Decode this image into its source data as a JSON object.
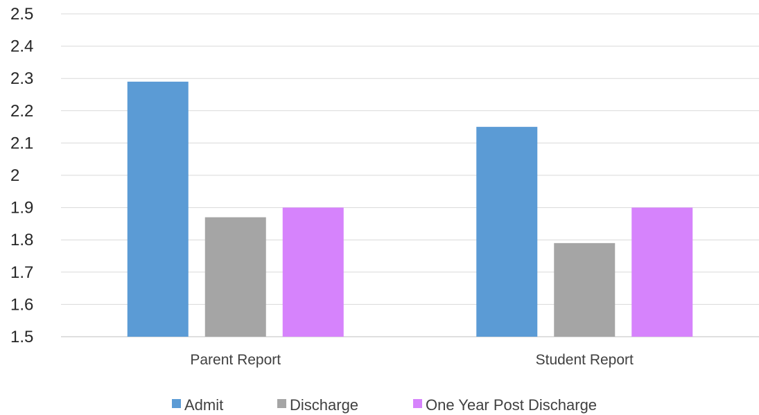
{
  "chart_data": {
    "type": "bar",
    "title": "",
    "xlabel": "",
    "ylabel": "",
    "categories": [
      "Parent Report",
      "Student Report"
    ],
    "series": [
      {
        "name": "Admit",
        "values": [
          2.29,
          2.15
        ],
        "color": "#5b9bd5"
      },
      {
        "name": "Discharge",
        "values": [
          1.87,
          1.79
        ],
        "color": "#a5a5a5"
      },
      {
        "name": "One Year Post Discharge",
        "values": [
          1.9,
          1.9
        ],
        "color": "#d683fc"
      }
    ],
    "ylim": [
      1.5,
      2.5
    ],
    "yticks": [
      "1.5",
      "1.6",
      "1.7",
      "1.8",
      "1.9",
      "2",
      "2.1",
      "2.2",
      "2.3",
      "2.4",
      "2.5"
    ],
    "grid": true,
    "legend_position": "bottom"
  }
}
